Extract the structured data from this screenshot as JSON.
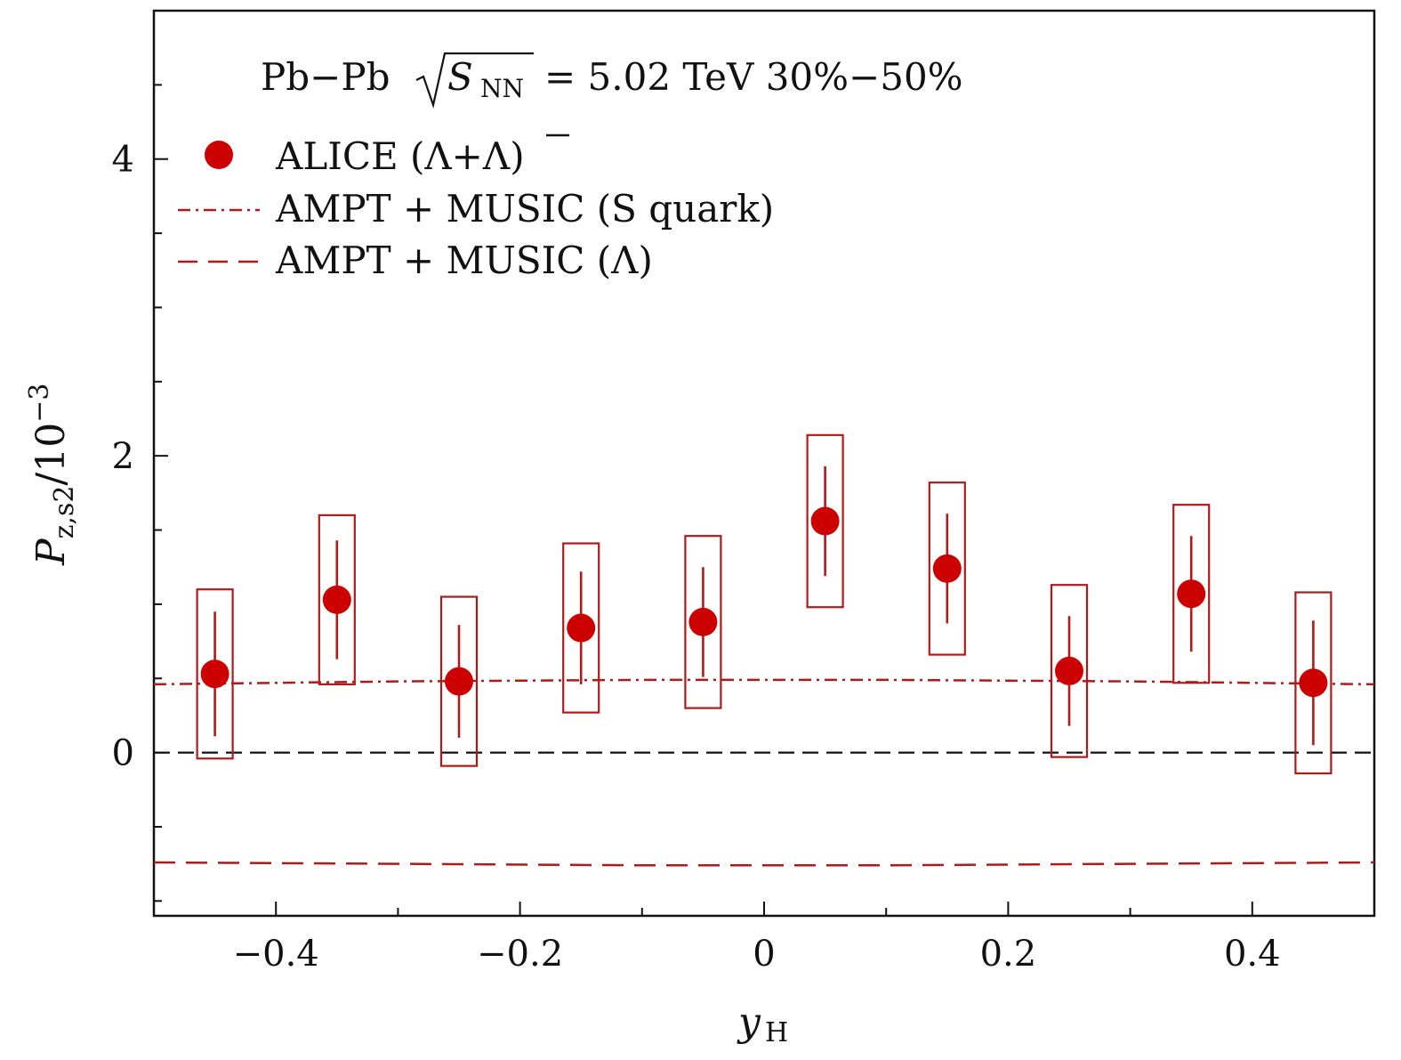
{
  "chart_data": {
    "type": "scatter",
    "title": "",
    "annotation": {
      "prefix": "Pb−Pb",
      "sqrt_var": "S",
      "sqrt_sub": "NN",
      "suffix": "= 5.02 TeV 30%−50%"
    },
    "xlabel": {
      "main": "y",
      "sub": "H"
    },
    "ylabel": {
      "main": "P",
      "sub": "z,s2",
      "denominator": "/10",
      "exponent": "−3"
    },
    "xlim": [
      -0.5,
      0.5
    ],
    "ylim": [
      -1.1,
      5.0
    ],
    "xticks": [
      -0.4,
      -0.2,
      0,
      0.2,
      0.4
    ],
    "xtick_labels": [
      "−0.4",
      "−0.2",
      "0",
      "0.2",
      "0.4"
    ],
    "xminor_step": 0.1,
    "yticks": [
      0,
      2,
      4
    ],
    "ytick_labels": [
      "0",
      "2",
      "4"
    ],
    "yminor_step": 0.5,
    "reference_line_y": 0,
    "legend": [
      {
        "label": "ALICE (Λ+Λ)",
        "marker": "circle"
      },
      {
        "label": "AMPT + MUSIC (S quark)",
        "style": "dash-dot"
      },
      {
        "label": "AMPT + MUSIC (Λ)",
        "style": "dashed"
      }
    ],
    "series": [
      {
        "name": "ALICE (Λ+Λ)",
        "x": [
          -0.45,
          -0.35,
          -0.25,
          -0.15,
          -0.05,
          0.05,
          0.15,
          0.25,
          0.35,
          0.45
        ],
        "y": [
          0.53,
          1.03,
          0.48,
          0.84,
          0.88,
          1.56,
          1.24,
          0.55,
          1.07,
          0.47
        ],
        "stat_err": [
          0.42,
          0.4,
          0.38,
          0.38,
          0.37,
          0.37,
          0.37,
          0.37,
          0.39,
          0.42
        ],
        "sys_err": [
          0.57,
          0.57,
          0.57,
          0.57,
          0.58,
          0.58,
          0.58,
          0.58,
          0.6,
          0.61
        ]
      },
      {
        "name": "AMPT + MUSIC (S quark)",
        "x": [
          -0.5,
          -0.3,
          -0.1,
          0.1,
          0.3,
          0.5
        ],
        "y": [
          0.46,
          0.48,
          0.49,
          0.49,
          0.48,
          0.46
        ]
      },
      {
        "name": "AMPT + MUSIC (Λ)",
        "x": [
          -0.5,
          -0.3,
          -0.1,
          0.1,
          0.3,
          0.5
        ],
        "y": [
          -0.74,
          -0.75,
          -0.76,
          -0.76,
          -0.75,
          -0.74
        ]
      }
    ],
    "colors": {
      "model": "#b01a1a",
      "data": "#cc0000",
      "axis": "#111111",
      "reference": "#111111"
    }
  }
}
